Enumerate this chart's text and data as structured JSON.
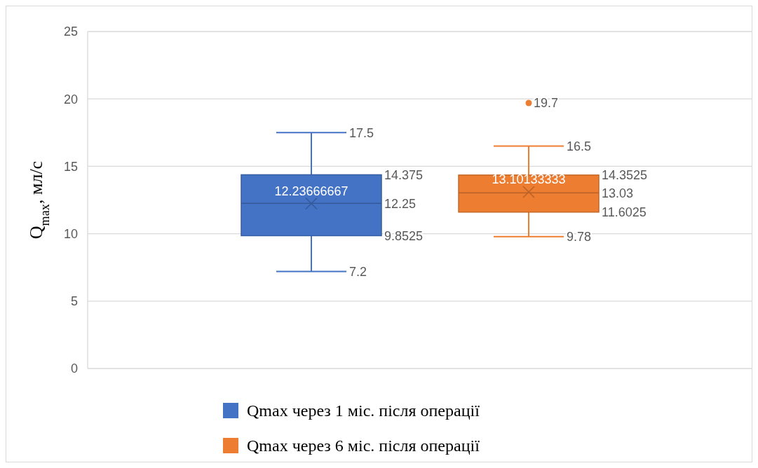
{
  "chart_data": {
    "type": "box",
    "ylabel": "Q$_{max}$, мл/с",
    "categories": [
      null
    ],
    "ylim": [
      0,
      25
    ],
    "yticks": [
      0,
      5,
      10,
      15,
      20,
      25
    ],
    "grid": "y",
    "legend": "bottom",
    "marker": "cross",
    "series": [
      {
        "name": "Qmax через 1 міс. після операції",
        "color": "#4472c4",
        "boxes": [
          {
            "low": 7.2,
            "q1": 9.8525,
            "median": 12.25,
            "q3": 14.375,
            "high": 17.5,
            "mean": 12.23666667
          }
        ]
      },
      {
        "name": "Qmax через 6 міс. після операції",
        "color": "#ed7d31",
        "boxes": [
          {
            "low": 9.78,
            "q1": 11.6025,
            "median": 13.03,
            "q3": 14.3525,
            "high": 16.5,
            "mean": 13.10133333,
            "outliers": [
              19.7
            ]
          }
        ]
      }
    ],
    "annotations": [
      "17.5",
      "7.2",
      "14.375",
      "12.25",
      "9.8525",
      "12.23666667",
      "16.5",
      "9.78",
      "14.3525",
      "13.03",
      "11.6025",
      "13.10133333",
      "19.7"
    ]
  }
}
